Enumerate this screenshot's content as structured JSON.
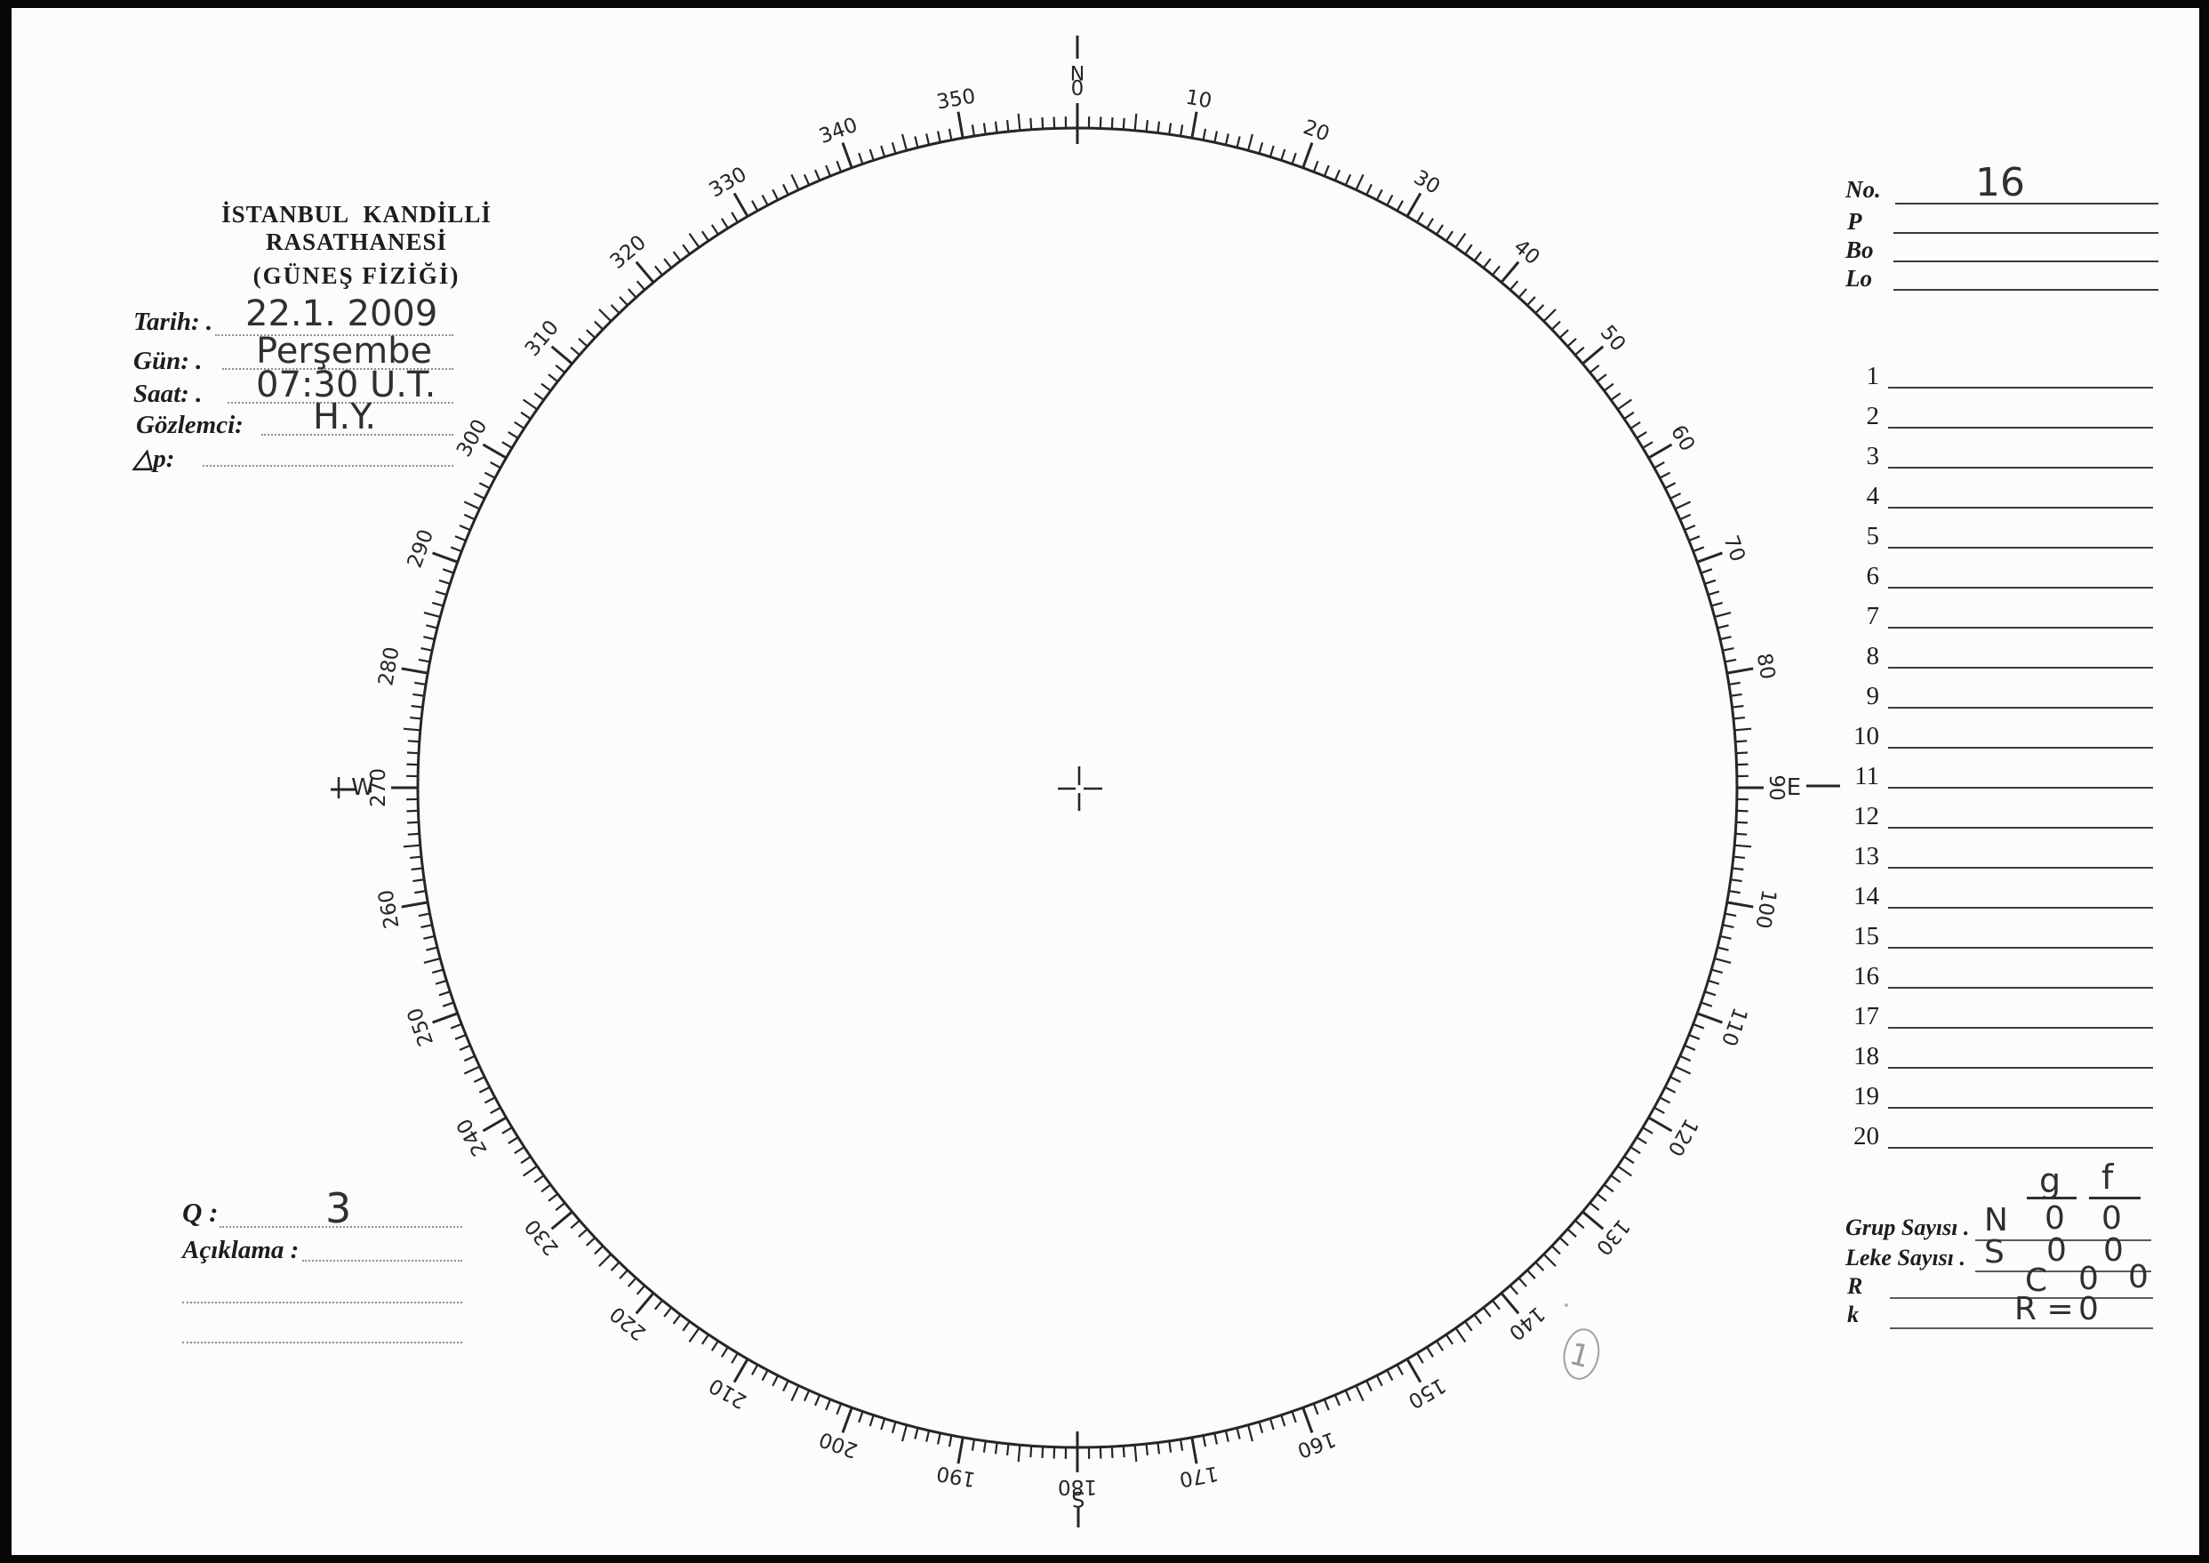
{
  "header": {
    "institution_line1": "İSTANBUL KANDİLLİ RASATHANESİ",
    "institution_line2": "(GÜNEŞ FİZİĞİ)"
  },
  "observation_form": {
    "fields": [
      {
        "label": "Tarih: .",
        "value": "22.1. 2009"
      },
      {
        "label": "Gün: .",
        "value": "Perşembe"
      },
      {
        "label": "Saat: .",
        "value": "07:30  U.T."
      },
      {
        "label": "Gözlemci:",
        "value": "H.Y."
      },
      {
        "label": "△p:",
        "value": ""
      }
    ]
  },
  "quality_section": {
    "q_label": "Q :",
    "q_value": "3",
    "note_label": "Açıklama :",
    "note_value": ""
  },
  "right_panel": {
    "no": {
      "label": "No.",
      "value": "16"
    },
    "p": {
      "label": "P",
      "value": ""
    },
    "bo": {
      "label": "Bo",
      "value": ""
    },
    "lo": {
      "label": "Lo",
      "value": ""
    },
    "row_numbers": [
      "1",
      "2",
      "3",
      "4",
      "5",
      "6",
      "7",
      "8",
      "9",
      "10",
      "11",
      "12",
      "13",
      "14",
      "15",
      "16",
      "17",
      "18",
      "19",
      "20"
    ],
    "summary": {
      "col_g": "g",
      "col_f": "f",
      "rows": [
        {
          "label": "Grup Sayısı .",
          "prefix": "N",
          "g": "0",
          "f": "0"
        },
        {
          "label": "Leke Sayısı .",
          "prefix": "S",
          "g": "0",
          "f": "0"
        },
        {
          "label": "R",
          "prefix": "C",
          "g": "0",
          "f": "0"
        },
        {
          "label": "k",
          "prefix": "R =",
          "g": "0",
          "f": ""
        }
      ]
    }
  },
  "dial": {
    "compass": {
      "north": "N",
      "east": "E",
      "south": "S",
      "west": "W"
    },
    "degree_step": 10,
    "degree_labels": [
      "0",
      "10",
      "20",
      "30",
      "40",
      "50",
      "60",
      "70",
      "80",
      "90",
      "100",
      "110",
      "120",
      "130",
      "140",
      "150",
      "160",
      "170",
      "180",
      "190",
      "200",
      "210",
      "220",
      "230",
      "240",
      "250",
      "260",
      "270",
      "280",
      "290",
      "300",
      "310",
      "320",
      "330",
      "340",
      "350"
    ],
    "pencil_annotation": "1"
  }
}
